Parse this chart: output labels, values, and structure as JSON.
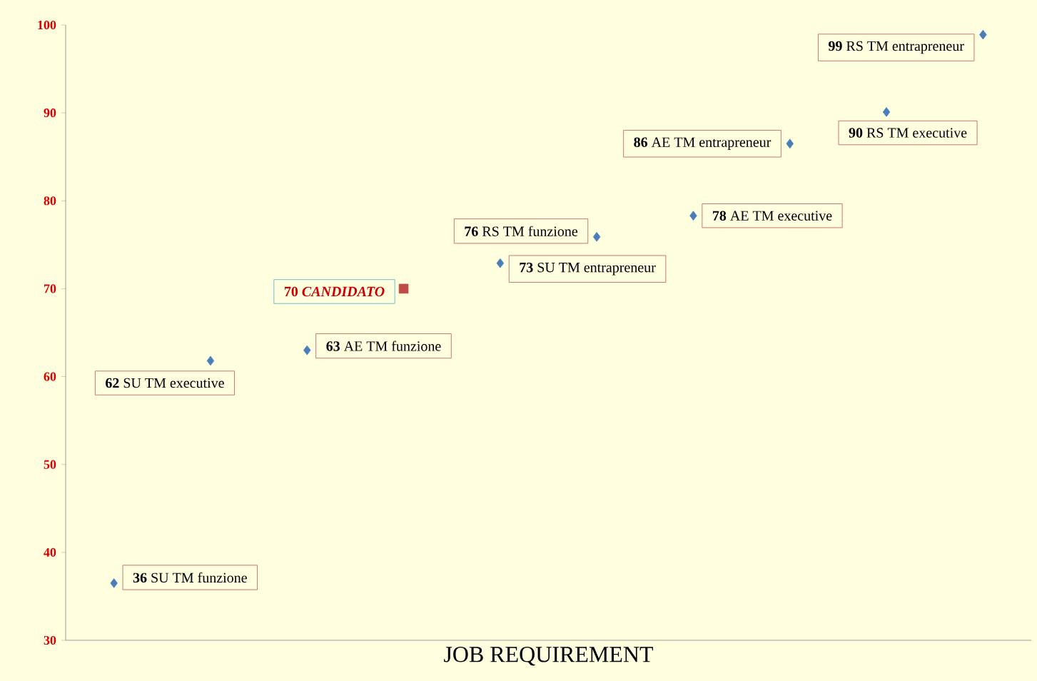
{
  "chart_data": {
    "type": "scatter",
    "xlabel": "JOB REQUIREMENT",
    "categories": [
      null,
      null,
      null,
      null,
      null,
      null,
      null,
      null,
      null,
      null
    ],
    "ylim": [
      30,
      100
    ],
    "yticks": [
      30,
      40,
      50,
      60,
      70,
      80,
      90,
      100
    ],
    "marker": "diamond",
    "series": [
      {
        "color": "#4a7ebb",
        "values": [
          36.5,
          61.8,
          63,
          null,
          72.9,
          75.9,
          78.3,
          86.5,
          90.1,
          98.9
        ],
        "value_labels": [
          "**36** SU TM funzione",
          "**62** SU TM executive",
          "**63** AE TM funzione",
          null,
          "**73** SU TM entrapreneur",
          "**76** RS TM funzione",
          "**78** AE TM executive",
          "**86** AE TM entrapreneur",
          "**90** RS TM executive",
          "**99** RS TM entrapreneur"
        ]
      },
      {
        "color": "#be4b48",
        "marker": "square",
        "values": [
          null,
          null,
          null,
          70,
          null,
          null,
          null,
          null,
          null,
          null
        ],
        "value_labels": [
          null,
          null,
          null,
          "**70** *CANDIDATO*",
          null,
          null,
          null,
          null,
          null,
          null
        ]
      }
    ]
  }
}
